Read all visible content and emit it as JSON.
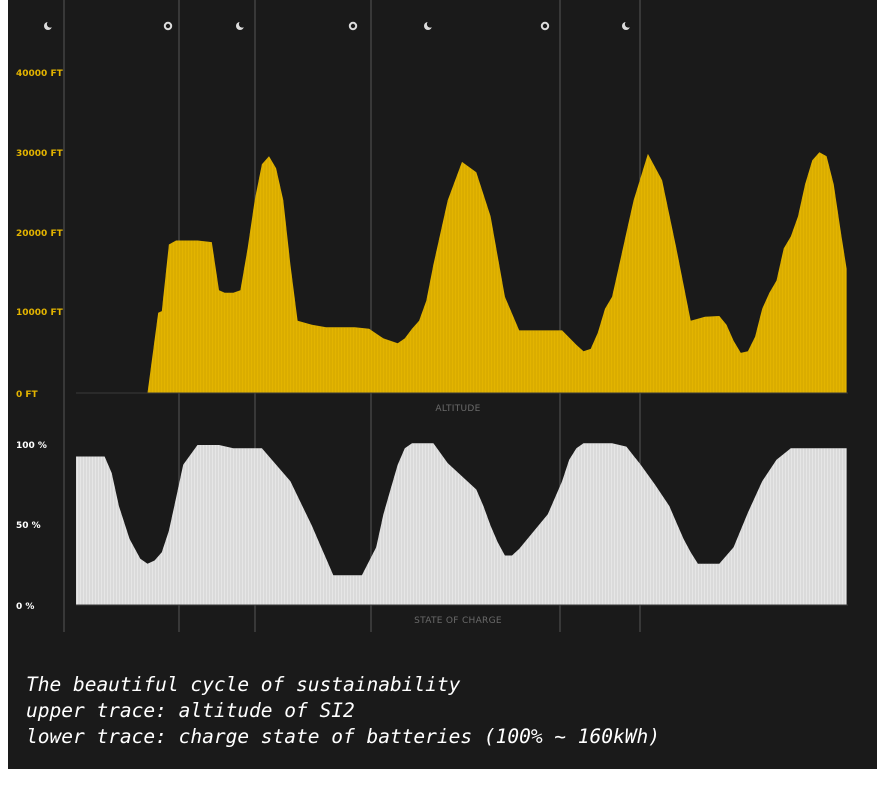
{
  "colors": {
    "background": "#1a1a1a",
    "altitude_fill": "#e3b400",
    "altitude_label": "#e3b400",
    "charge_fill": "#e6e6e6",
    "charge_label": "#ffffff",
    "day_night_divider": "#555555",
    "caption_text": "#ffffff"
  },
  "day_night_icons": [
    {
      "icon": "moon-icon",
      "period": "night"
    },
    {
      "icon": "sun-icon",
      "period": "day"
    },
    {
      "icon": "moon-icon",
      "period": "night"
    },
    {
      "icon": "sun-icon",
      "period": "day"
    },
    {
      "icon": "moon-icon",
      "period": "night"
    },
    {
      "icon": "sun-icon",
      "period": "day"
    },
    {
      "icon": "moon-icon",
      "period": "night"
    }
  ],
  "caption": {
    "line1": "The beautiful cycle of sustainability",
    "line2": "upper trace: altitude of SI2",
    "line3": "lower trace: charge state of batteries (100% ~ 160kWh)"
  },
  "chart_data": [
    {
      "type": "area",
      "xlabel": "ALTITUDE",
      "ylim": [
        0,
        40000
      ],
      "yticks": [
        "0 FT",
        "10000 FT",
        "20000 FT",
        "30000 FT",
        "40000 FT"
      ],
      "x": [
        0,
        5,
        10,
        11.5,
        12,
        13,
        14,
        15,
        17,
        19,
        20,
        20.8,
        21,
        22,
        23,
        24,
        25,
        26,
        27,
        28,
        29,
        30,
        31,
        33,
        35,
        37,
        39,
        41,
        43,
        45,
        46,
        47,
        48,
        49,
        50,
        52,
        54,
        56,
        58,
        60,
        62,
        64,
        66,
        68,
        70,
        71,
        72,
        73,
        74,
        75,
        76,
        77,
        78,
        80,
        82,
        84,
        86,
        88,
        90,
        91,
        92,
        93,
        94,
        95,
        96,
        97,
        98,
        99,
        100,
        101,
        102,
        103,
        104,
        105,
        106,
        107,
        107.8
      ],
      "y": [
        0,
        0,
        0,
        10000,
        10200,
        18500,
        19000,
        19000,
        19000,
        18800,
        12800,
        12500,
        12500,
        12500,
        12800,
        18000,
        24000,
        28500,
        29500,
        28000,
        24000,
        16000,
        9000,
        8500,
        8200,
        8200,
        8200,
        8000,
        6800,
        6200,
        6800,
        8000,
        9000,
        11500,
        16000,
        24000,
        28800,
        27500,
        22000,
        12000,
        7800,
        7800,
        7800,
        7800,
        6000,
        5200,
        5500,
        7500,
        10500,
        12000,
        16000,
        20000,
        24000,
        29800,
        26500,
        18000,
        9000,
        9500,
        9600,
        8500,
        6500,
        5000,
        5200,
        7000,
        10500,
        12500,
        14000,
        18000,
        19500,
        22000,
        26000,
        29000,
        30000,
        29500,
        26000,
        20000,
        15500
      ]
    },
    {
      "type": "area",
      "xlabel": "STATE OF CHARGE",
      "ylim": [
        0,
        100
      ],
      "yticks": [
        "0 %",
        "50 %",
        "100 %"
      ],
      "x": [
        0,
        4,
        5,
        6,
        7.5,
        9,
        10,
        11,
        12,
        13,
        14,
        15,
        17,
        20,
        22,
        26,
        30,
        32,
        33,
        34,
        35,
        36,
        40,
        42,
        43,
        44,
        45,
        46,
        47,
        48,
        49,
        50,
        52,
        56,
        57,
        58,
        59,
        60,
        61,
        62,
        66,
        68,
        69,
        70,
        71,
        72,
        73,
        74,
        75,
        77,
        79,
        81,
        83,
        84,
        85,
        86,
        87,
        88,
        90,
        92,
        94,
        96,
        98,
        100,
        101,
        102,
        104,
        107.8
      ],
      "y": [
        90,
        90,
        80,
        60,
        40,
        28,
        25,
        27,
        32,
        45,
        65,
        85,
        97,
        97,
        95,
        95,
        75,
        57,
        48,
        38,
        28,
        18,
        18,
        35,
        55,
        70,
        85,
        95,
        98,
        98,
        98,
        98,
        86,
        70,
        60,
        48,
        38,
        30,
        30,
        34,
        55,
        75,
        88,
        95,
        98,
        98,
        98,
        98,
        98,
        96,
        85,
        73,
        60,
        50,
        40,
        32,
        25,
        25,
        25,
        35,
        56,
        75,
        88,
        95,
        95,
        95,
        95,
        95
      ]
    }
  ]
}
